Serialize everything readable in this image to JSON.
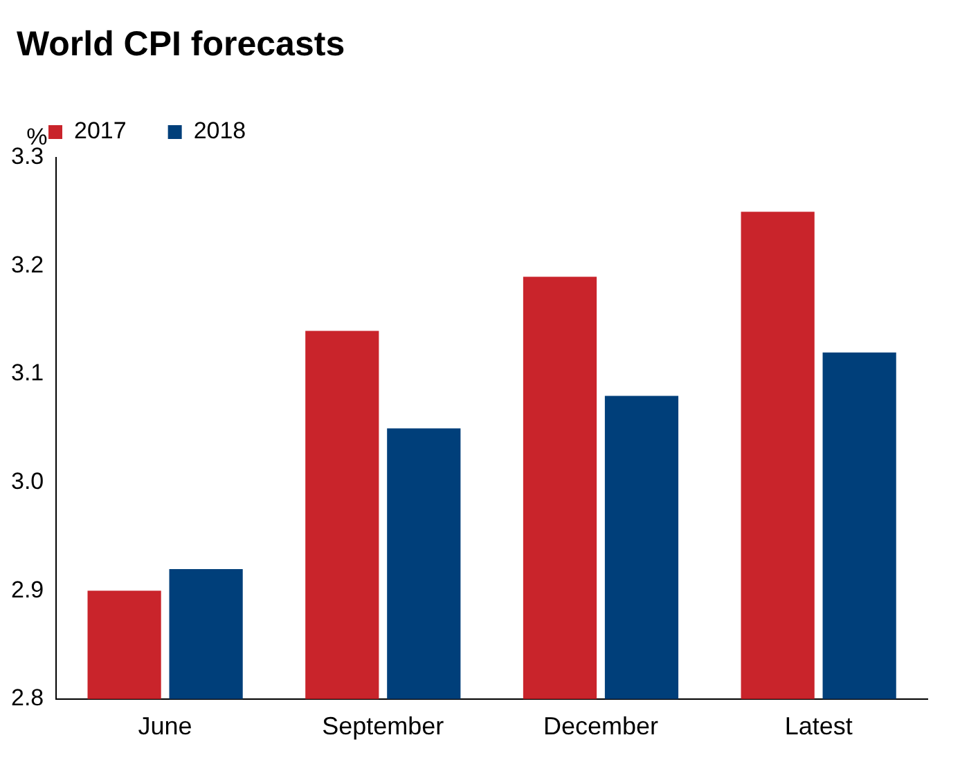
{
  "chart_data": {
    "type": "bar",
    "title": "World CPI forecasts",
    "ylabel": "%",
    "categories": [
      "June",
      "September",
      "December",
      "Latest"
    ],
    "series": [
      {
        "name": "2017",
        "color": "#c9242b",
        "values": [
          2.9,
          3.14,
          3.19,
          3.25
        ]
      },
      {
        "name": "2018",
        "color": "#003f7a",
        "values": [
          2.92,
          3.05,
          3.08,
          3.12
        ]
      }
    ],
    "ylim": [
      2.8,
      3.3
    ],
    "yticks": [
      2.8,
      2.9,
      {
        "value": 3,
        "label": "3.0"
      },
      3.1,
      3.2,
      3.3
    ],
    "grid": false,
    "legend": "top left"
  }
}
